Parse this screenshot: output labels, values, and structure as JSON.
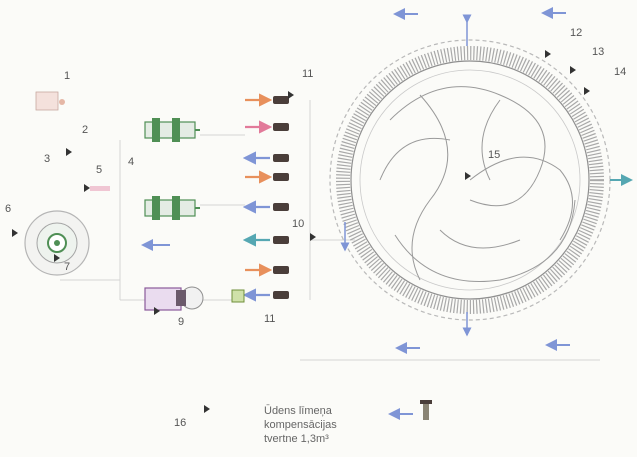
{
  "labels": {
    "n1": "1",
    "n2": "2",
    "n3": "3",
    "n4": "4",
    "n5": "5",
    "n6": "6",
    "n7": "7",
    "n9": "9",
    "n10": "10",
    "n11_top": "11",
    "n11_bottom": "11",
    "n12": "12",
    "n13": "13",
    "n14": "14",
    "n15": "15",
    "n16": "16"
  },
  "caption": {
    "line1": "Ūdens līmeņa",
    "line2": "kompensācijas",
    "line3": "tvertne 1,3m³"
  },
  "colors": {
    "background": "#fbfbf8",
    "line": "#b9b9b9",
    "ring_hatch": "#a9a9a9",
    "arrow_blue": "#7f95d6",
    "arrow_orange": "#e8905c",
    "arrow_pink": "#e27a9a",
    "arrow_teal": "#55a7b2",
    "pump_green": "#4f8f55",
    "valve_dark": "#4a3e3a",
    "pointer": "#333333"
  }
}
